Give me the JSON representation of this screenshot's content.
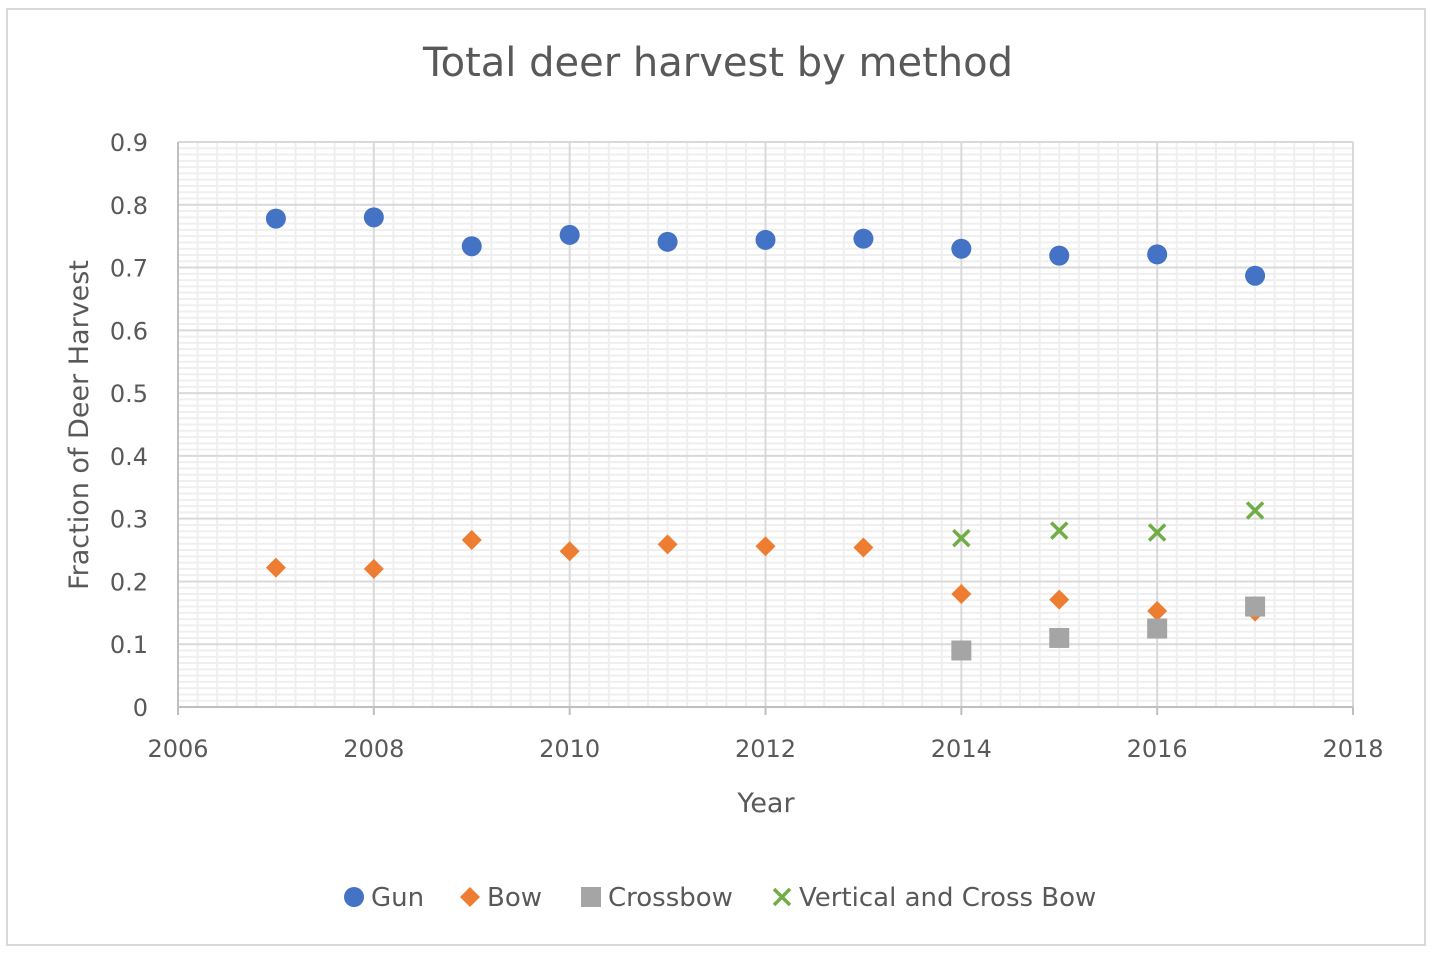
{
  "chart_data": {
    "type": "scatter",
    "title": "Total deer harvest by method",
    "xlabel": "Year",
    "ylabel": "Fraction of Deer Harvest",
    "xlim": [
      2006,
      2018
    ],
    "ylim": [
      0,
      0.9
    ],
    "x_ticks": [
      "2006",
      "2008",
      "2010",
      "2012",
      "2014",
      "2016",
      "2018"
    ],
    "y_ticks": [
      "0",
      "0.1",
      "0.2",
      "0.3",
      "0.4",
      "0.5",
      "0.6",
      "0.7",
      "0.8",
      "0.9"
    ],
    "grid": true,
    "legend_position": "bottom",
    "series": [
      {
        "name": "Gun",
        "marker": "circle",
        "color": "#4472c4",
        "points": [
          [
            2007,
            0.778
          ],
          [
            2008,
            0.78
          ],
          [
            2009,
            0.734
          ],
          [
            2010,
            0.752
          ],
          [
            2011,
            0.741
          ],
          [
            2012,
            0.744
          ],
          [
            2013,
            0.746
          ],
          [
            2014,
            0.73
          ],
          [
            2015,
            0.719
          ],
          [
            2016,
            0.721
          ],
          [
            2017,
            0.687
          ]
        ]
      },
      {
        "name": "Bow",
        "marker": "diamond",
        "color": "#ed7d31",
        "points": [
          [
            2007,
            0.222
          ],
          [
            2008,
            0.22
          ],
          [
            2009,
            0.266
          ],
          [
            2010,
            0.248
          ],
          [
            2011,
            0.259
          ],
          [
            2012,
            0.256
          ],
          [
            2013,
            0.254
          ],
          [
            2014,
            0.18
          ],
          [
            2015,
            0.171
          ],
          [
            2016,
            0.153
          ],
          [
            2017,
            0.152
          ]
        ]
      },
      {
        "name": "Crossbow",
        "marker": "square",
        "color": "#a5a5a5",
        "points": [
          [
            2014,
            0.09
          ],
          [
            2015,
            0.11
          ],
          [
            2016,
            0.125
          ],
          [
            2017,
            0.16
          ]
        ]
      },
      {
        "name": "Vertical and Cross Bow",
        "marker": "x",
        "color": "#70ad47",
        "points": [
          [
            2014,
            0.269
          ],
          [
            2015,
            0.281
          ],
          [
            2016,
            0.278
          ],
          [
            2017,
            0.313
          ]
        ]
      }
    ]
  }
}
